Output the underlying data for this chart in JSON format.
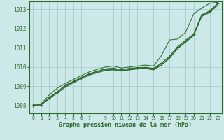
{
  "bg_color": "#cce8e8",
  "grid_color": "#aacccc",
  "line_color": "#2d6a2d",
  "xlabel": "Graphe pression niveau de la mer (hPa)",
  "ylim": [
    1007.6,
    1013.4
  ],
  "xlim": [
    -0.5,
    23.5
  ],
  "yticks": [
    1008,
    1009,
    1010,
    1011,
    1012,
    1013
  ],
  "xticks": [
    0,
    1,
    2,
    3,
    4,
    5,
    6,
    7,
    9,
    10,
    11,
    12,
    13,
    14,
    15,
    16,
    17,
    18,
    19,
    20,
    21,
    22,
    23
  ],
  "line_main_x": [
    0,
    1,
    2,
    3,
    4,
    5,
    6,
    7,
    9,
    10,
    11,
    12,
    13,
    14,
    15,
    16,
    17,
    18,
    19,
    20,
    21,
    22,
    23
  ],
  "line_main_y": [
    1008.0,
    1008.05,
    1008.4,
    1008.7,
    1009.05,
    1009.25,
    1009.45,
    1009.65,
    1009.9,
    1009.93,
    1009.87,
    1009.92,
    1009.96,
    1009.98,
    1009.92,
    1010.2,
    1010.55,
    1011.05,
    1011.38,
    1011.7,
    1012.7,
    1012.9,
    1013.3
  ],
  "line_upper_x": [
    0,
    1,
    2,
    3,
    4,
    5,
    6,
    7,
    9,
    10,
    11,
    12,
    13,
    14,
    15,
    16,
    17,
    18,
    19,
    20,
    21,
    22,
    23
  ],
  "line_upper_y": [
    1008.05,
    1008.1,
    1008.55,
    1008.9,
    1009.15,
    1009.35,
    1009.55,
    1009.75,
    1010.0,
    1010.05,
    1009.95,
    1010.0,
    1010.05,
    1010.1,
    1010.05,
    1010.6,
    1011.4,
    1011.45,
    1011.8,
    1012.75,
    1013.05,
    1013.3,
    1013.35
  ],
  "line_low1_x": [
    0,
    1,
    2,
    3,
    4,
    5,
    6,
    7,
    9,
    10,
    11,
    12,
    13,
    14,
    15,
    16,
    17,
    18,
    19,
    20,
    21,
    22,
    23
  ],
  "line_low1_y": [
    1008.0,
    1008.05,
    1008.35,
    1008.65,
    1008.95,
    1009.18,
    1009.38,
    1009.58,
    1009.82,
    1009.85,
    1009.8,
    1009.85,
    1009.9,
    1009.92,
    1009.85,
    1010.1,
    1010.45,
    1010.95,
    1011.28,
    1011.62,
    1012.62,
    1012.82,
    1013.2
  ],
  "line_low2_x": [
    1,
    2,
    3,
    4,
    5,
    6,
    7,
    9,
    10,
    11,
    12,
    13,
    14,
    15,
    16,
    17,
    18,
    19,
    20,
    21,
    22,
    23
  ],
  "line_low2_y": [
    1008.05,
    1008.42,
    1008.72,
    1009.0,
    1009.22,
    1009.42,
    1009.62,
    1009.85,
    1009.88,
    1009.82,
    1009.87,
    1009.92,
    1009.94,
    1009.88,
    1010.12,
    1010.48,
    1010.98,
    1011.32,
    1011.65,
    1012.65,
    1012.85,
    1013.22
  ],
  "marker_line_x": [
    0,
    1,
    2,
    3,
    4,
    5,
    6,
    7,
    9,
    10,
    11,
    12,
    13,
    14,
    15,
    16,
    17,
    18,
    19,
    20,
    21,
    22,
    23
  ],
  "marker_line_y": [
    1008.0,
    1008.05,
    1008.4,
    1008.7,
    1009.05,
    1009.25,
    1009.45,
    1009.65,
    1009.9,
    1009.93,
    1009.87,
    1009.92,
    1009.96,
    1009.98,
    1009.92,
    1010.2,
    1010.55,
    1011.05,
    1011.38,
    1011.7,
    1012.7,
    1012.9,
    1013.3
  ]
}
